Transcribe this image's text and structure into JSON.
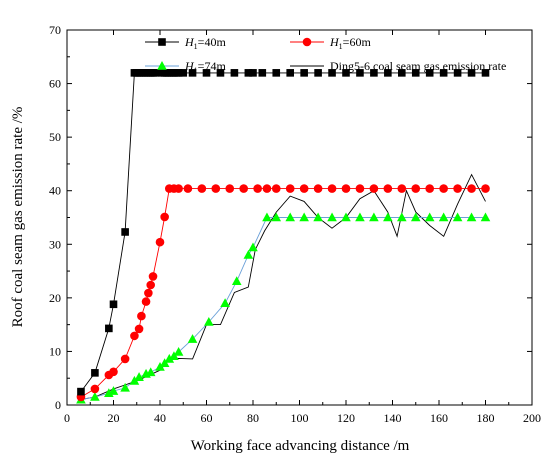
{
  "chart_data": {
    "type": "scatter",
    "xlabel": "Working face advancing distance /m",
    "ylabel": "Roof coal seam gas emission rate /%",
    "xlim": [
      0,
      200
    ],
    "ylim": [
      0,
      70
    ],
    "xticks": [
      0,
      20,
      40,
      60,
      80,
      100,
      120,
      140,
      160,
      180,
      200
    ],
    "yticks": [
      0,
      10,
      20,
      30,
      40,
      50,
      60,
      70
    ],
    "grid": false,
    "legend_position": "top",
    "series": [
      {
        "name_prefix": "H",
        "name_sub": "1",
        "name_suffix": "=40m",
        "name": "H1=40m",
        "marker": "square",
        "color": "#000000",
        "line_color": "#000000",
        "x": [
          6,
          12,
          18,
          20,
          25,
          29,
          30,
          31,
          32,
          33,
          34,
          35,
          36,
          37,
          38,
          41,
          42,
          43,
          44,
          45,
          46,
          47,
          48,
          50,
          54,
          60,
          66,
          72,
          78,
          80,
          84,
          90,
          96,
          102,
          108,
          114,
          120,
          126,
          132,
          138,
          144,
          150,
          156,
          162,
          168,
          174,
          180
        ],
        "y": [
          2.5,
          6,
          14.3,
          18.8,
          32.3,
          62,
          62,
          62,
          62,
          62,
          62,
          62,
          62,
          62,
          62,
          62,
          62,
          62,
          62,
          62,
          62,
          62,
          62,
          62,
          62,
          62,
          62,
          62,
          62,
          62,
          62,
          62,
          62,
          62,
          62,
          62,
          62,
          62,
          62,
          62,
          62,
          62,
          62,
          62,
          62,
          62,
          62
        ]
      },
      {
        "name_prefix": "H",
        "name_sub": "1",
        "name_suffix": "=60m",
        "name": "H1=60m",
        "marker": "circle",
        "color": "#ff0000",
        "line_color": "#ff0000",
        "x": [
          6,
          12,
          18,
          20,
          25,
          29,
          31,
          32,
          34,
          35,
          36,
          37,
          40,
          42,
          44,
          46,
          48,
          52,
          58,
          64,
          70,
          76,
          82,
          86,
          90,
          96,
          102,
          108,
          114,
          120,
          126,
          132,
          138,
          144,
          150,
          156,
          162,
          168,
          174,
          180
        ],
        "y": [
          1.5,
          3,
          5.6,
          6.2,
          8.6,
          12.9,
          14.2,
          16.6,
          19.3,
          20.9,
          22.4,
          24,
          30.4,
          35.1,
          40.4,
          40.4,
          40.4,
          40.4,
          40.4,
          40.4,
          40.4,
          40.4,
          40.4,
          40.4,
          40.4,
          40.4,
          40.4,
          40.4,
          40.4,
          40.4,
          40.4,
          40.4,
          40.4,
          40.4,
          40.4,
          40.4,
          40.4,
          40.4,
          40.4,
          40.4
        ]
      },
      {
        "name_prefix": "H",
        "name_sub": "1",
        "name_suffix": "=74m",
        "name": "H1=74m",
        "marker": "triangle",
        "color": "#00ff00",
        "line_color": "#6aa0d8",
        "x": [
          6,
          12,
          18,
          20,
          25,
          29,
          31,
          34,
          36,
          40,
          42,
          44,
          46,
          48,
          54,
          61,
          68,
          73,
          78,
          80,
          86,
          90,
          96,
          102,
          108,
          114,
          120,
          126,
          132,
          138,
          144,
          150,
          156,
          162,
          168,
          174,
          180
        ],
        "y": [
          1,
          1.5,
          2.2,
          2.6,
          3.2,
          4.5,
          5.2,
          5.8,
          6.1,
          7.1,
          7.8,
          8.6,
          9.1,
          9.9,
          12.3,
          15.5,
          19,
          23.1,
          28,
          29.4,
          35,
          35,
          35,
          35,
          35,
          35,
          35,
          35,
          35,
          35,
          35,
          35,
          35,
          35,
          35,
          35,
          35
        ]
      },
      {
        "name": "Ding5-6 coal seam gas emission rate",
        "marker": "none",
        "color": "#000000",
        "line_color": "#000000",
        "x": [
          6,
          12,
          20,
          30,
          40,
          44,
          48,
          54,
          60,
          66,
          72,
          78,
          81,
          85,
          90,
          96,
          102,
          108,
          114,
          120,
          126,
          132,
          138,
          142,
          146,
          150,
          156,
          162,
          168,
          174,
          180
        ],
        "y": [
          1,
          1.5,
          3,
          4.5,
          6.5,
          8.5,
          8.7,
          8.6,
          15,
          15,
          21,
          22,
          29,
          32.5,
          36,
          39,
          38,
          35,
          33,
          35,
          38.5,
          40,
          36,
          31.5,
          40,
          36,
          33.5,
          31.5,
          37.5,
          43,
          38
        ]
      }
    ]
  }
}
